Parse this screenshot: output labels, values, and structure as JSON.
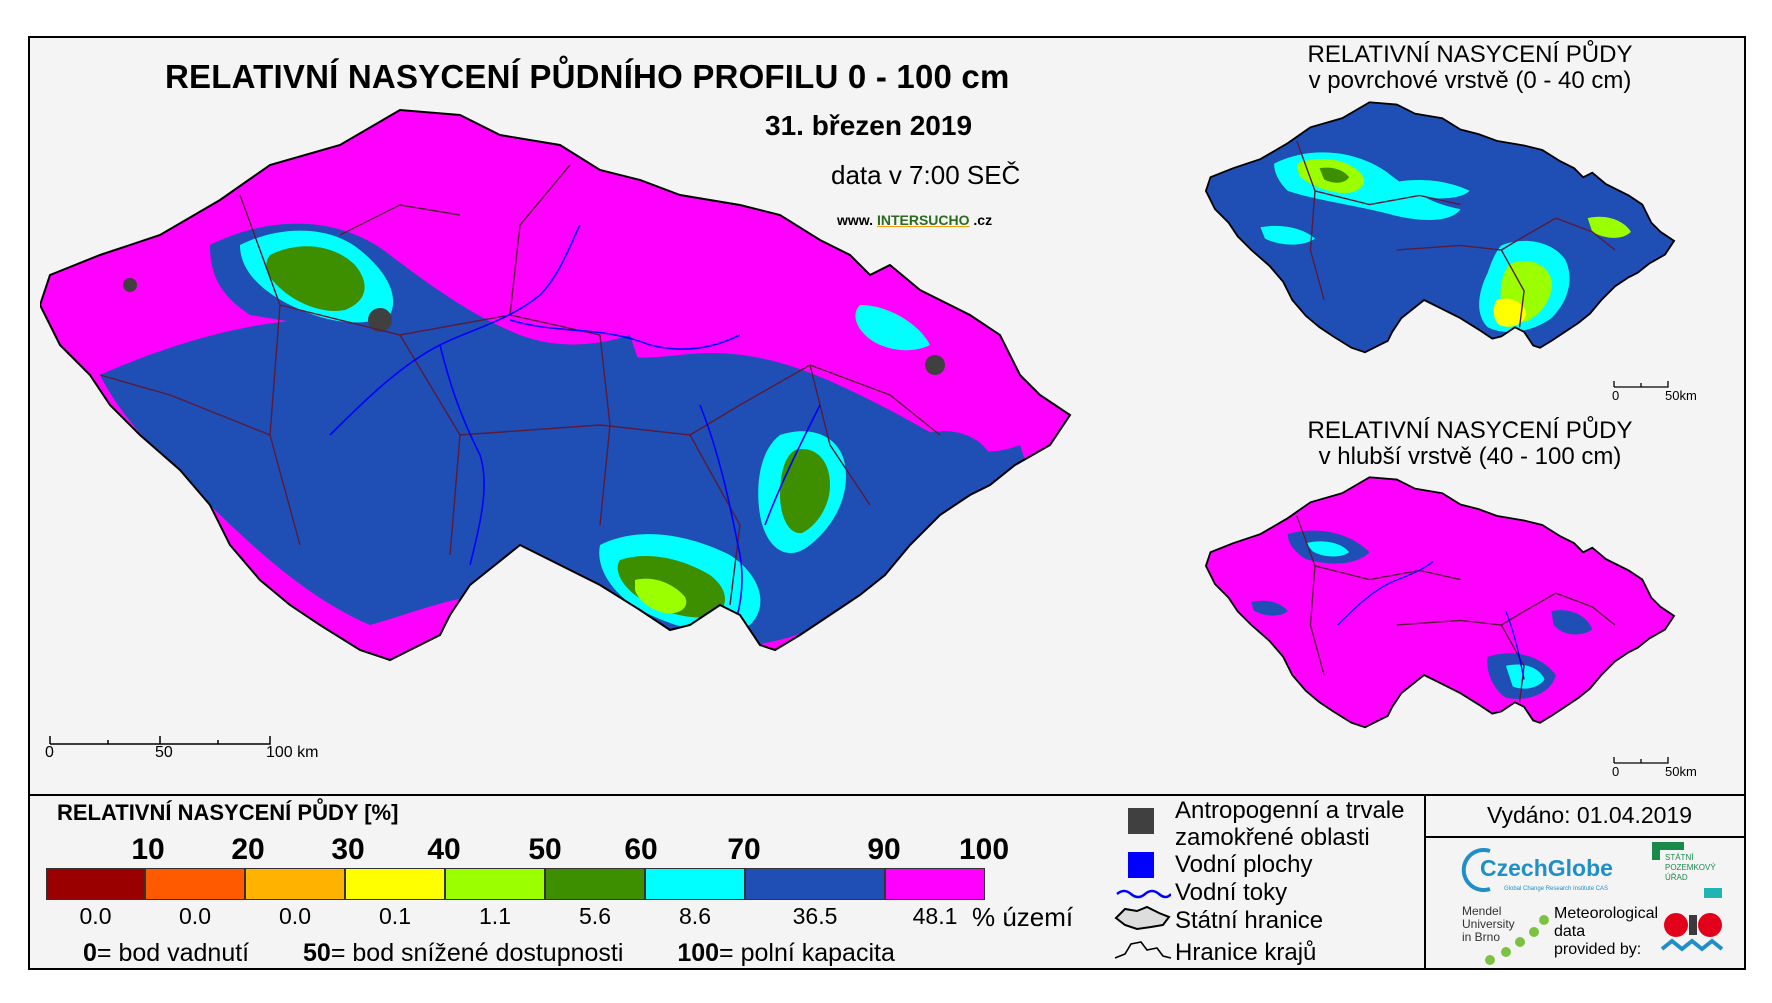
{
  "header": {
    "title": "RELATIVNÍ NASYCENÍ PŮDNÍHO PROFILU 0 - 100 cm",
    "date": "31. březen 2019",
    "data_time": "data v 7:00 SEČ",
    "website_prefix": "www.",
    "website_name": "INTERSUCHO",
    "website_suffix": ".cz"
  },
  "main_map": {
    "scale_labels": [
      "0",
      "50",
      "100 km"
    ]
  },
  "inset_top": {
    "title_line1": "RELATIVNÍ NASYCENÍ PŮDY",
    "title_line2": "v povrchové vrstvě (0 - 40 cm)",
    "scale_labels": [
      "0",
      "50km"
    ]
  },
  "inset_bottom": {
    "title_line1": "RELATIVNÍ NASYCENÍ PŮDY",
    "title_line2": "v hlubší vrstvě (40 - 100 cm)",
    "scale_labels": [
      "0",
      "50km"
    ]
  },
  "legend": {
    "title": "RELATIVNÍ NASYCENÍ PŮDY [%]",
    "tick_labels": [
      "10",
      "20",
      "30",
      "40",
      "50",
      "60",
      "70",
      "90",
      "100"
    ],
    "classes": [
      {
        "color": "#9b0000",
        "percent": "0.0"
      },
      {
        "color": "#ff5a00",
        "percent": "0.0"
      },
      {
        "color": "#ffb200",
        "percent": "0.0"
      },
      {
        "color": "#ffff00",
        "percent": "0.1"
      },
      {
        "color": "#9bff00",
        "percent": "1.1"
      },
      {
        "color": "#3d8f00",
        "percent": "5.6"
      },
      {
        "color": "#00ffff",
        "percent": "8.6"
      },
      {
        "color": "#1f4fb4",
        "percent": "36.5"
      },
      {
        "color": "#ff00ff",
        "percent": "48.1"
      }
    ],
    "area_unit": "% území",
    "definitions": [
      {
        "value": "0",
        "text": "= bod vadnutí"
      },
      {
        "value": "50",
        "text": "= bod snížené dostupnosti"
      },
      {
        "value": "100",
        "text": "= polní kapacita"
      }
    ]
  },
  "symbols": [
    {
      "icon": "gray-square-icon",
      "color": "#404040",
      "label_line1": "Antropogenní a trvale",
      "label_line2": "zamokřené oblasti"
    },
    {
      "icon": "blue-square-icon",
      "color": "#0000ff",
      "label_line1": "Vodní plochy"
    },
    {
      "icon": "wavy-line-icon",
      "color": "#0000ff",
      "label_line1": "Vodní toky"
    },
    {
      "icon": "country-border-icon",
      "label_line1": "Státní hranice"
    },
    {
      "icon": "region-border-icon",
      "label_line1": "Hranice krajů"
    }
  ],
  "credits": {
    "issued": "Vydáno: 01.04.2019",
    "czechglobe": "CzechGlobe",
    "czechglobe_sub": "Global Change Research Institute CAS",
    "mendel_line1": "Mendel",
    "mendel_line2": "University",
    "mendel_line3": "in Brno",
    "meteo_line1": "Meteorological",
    "meteo_line2": "data",
    "meteo_line3": "provided by:",
    "spu_line1": "STÁTNÍ",
    "spu_line2": "POZEMKOVÝ",
    "spu_line3": "ÚŘAD"
  },
  "colors": {
    "magenta": "#ff00ff",
    "blue": "#1f4fb4",
    "cyan": "#00ffff",
    "green": "#3d8f00",
    "lightgreen": "#9bff00",
    "yellow": "#ffff00",
    "region_border": "#5a1a3a",
    "river": "#0000ff"
  }
}
